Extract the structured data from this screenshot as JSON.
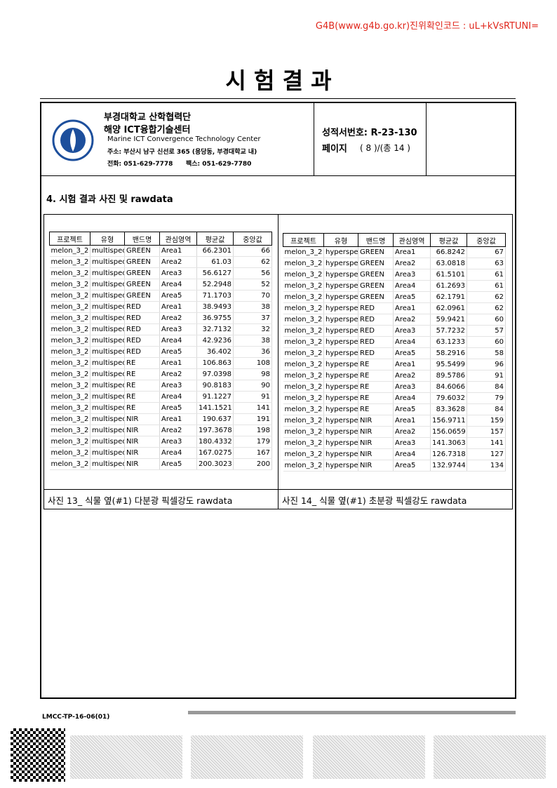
{
  "verification": "G4B(www.g4b.go.kr)진위확인코드 : uL+kVsRTUNI=",
  "title": "시 험 결 과",
  "header": {
    "org": "부경대학교 산학협력단",
    "center": "해양 ICT융합기술센터",
    "center_en": "Marine ICT Convergence Technology Center",
    "address": "주소: 부산시 남구 신선로 365 (용당동, 부경대학교 내)",
    "phone": "전화: 051-629-7778",
    "fax": "팩스:  051-629-7780",
    "report_no": "성적서번호: R-23-130",
    "page_label": "페이지",
    "page_value": "( 8 )/(총 14 )"
  },
  "section": "4. 시험 결과 사진 및 rawdata",
  "tables": [
    {
      "columns": [
        "프로젝트",
        "유형",
        "밴드명",
        "관심영역",
        "평균값",
        "중앙값"
      ],
      "rows": [
        [
          "melon_3_2",
          "multispect",
          "GREEN",
          "Area1",
          "66.2301",
          "66"
        ],
        [
          "melon_3_2",
          "multispect",
          "GREEN",
          "Area2",
          "61.03",
          "62"
        ],
        [
          "melon_3_2",
          "multispect",
          "GREEN",
          "Area3",
          "56.6127",
          "56"
        ],
        [
          "melon_3_2",
          "multispect",
          "GREEN",
          "Area4",
          "52.2948",
          "52"
        ],
        [
          "melon_3_2",
          "multispect",
          "GREEN",
          "Area5",
          "71.1703",
          "70"
        ],
        [
          "melon_3_2",
          "multispect",
          "RED",
          "Area1",
          "38.9493",
          "38"
        ],
        [
          "melon_3_2",
          "multispect",
          "RED",
          "Area2",
          "36.9755",
          "37"
        ],
        [
          "melon_3_2",
          "multispect",
          "RED",
          "Area3",
          "32.7132",
          "32"
        ],
        [
          "melon_3_2",
          "multispect",
          "RED",
          "Area4",
          "42.9236",
          "38"
        ],
        [
          "melon_3_2",
          "multispect",
          "RED",
          "Area5",
          "36.402",
          "36"
        ],
        [
          "melon_3_2",
          "multispect",
          "RE",
          "Area1",
          "106.863",
          "108"
        ],
        [
          "melon_3_2",
          "multispect",
          "RE",
          "Area2",
          "97.0398",
          "98"
        ],
        [
          "melon_3_2",
          "multispect",
          "RE",
          "Area3",
          "90.8183",
          "90"
        ],
        [
          "melon_3_2",
          "multispect",
          "RE",
          "Area4",
          "91.1227",
          "91"
        ],
        [
          "melon_3_2",
          "multispect",
          "RE",
          "Area5",
          "141.1521",
          "141"
        ],
        [
          "melon_3_2",
          "multispect",
          "NIR",
          "Area1",
          "190.637",
          "191"
        ],
        [
          "melon_3_2",
          "multispect",
          "NIR",
          "Area2",
          "197.3678",
          "198"
        ],
        [
          "melon_3_2",
          "multispect",
          "NIR",
          "Area3",
          "180.4332",
          "179"
        ],
        [
          "melon_3_2",
          "multispect",
          "NIR",
          "Area4",
          "167.0275",
          "167"
        ],
        [
          "melon_3_2",
          "multispect",
          "NIR",
          "Area5",
          "200.3023",
          "200"
        ]
      ],
      "caption": "사진 13_ 식물 옆(#1) 다분광 픽셀강도 rawdata"
    },
    {
      "columns": [
        "프로젝트",
        "유형",
        "밴드명",
        "관심영역",
        "평균값",
        "중앙값"
      ],
      "rows": [
        [
          "melon_3_2",
          "hyperspec",
          "GREEN",
          "Area1",
          "66.8242",
          "67"
        ],
        [
          "melon_3_2",
          "hyperspec",
          "GREEN",
          "Area2",
          "63.0818",
          "63"
        ],
        [
          "melon_3_2",
          "hyperspec",
          "GREEN",
          "Area3",
          "61.5101",
          "61"
        ],
        [
          "melon_3_2",
          "hyperspec",
          "GREEN",
          "Area4",
          "61.2693",
          "61"
        ],
        [
          "melon_3_2",
          "hyperspec",
          "GREEN",
          "Area5",
          "62.1791",
          "62"
        ],
        [
          "melon_3_2",
          "hyperspec",
          "RED",
          "Area1",
          "62.0961",
          "62"
        ],
        [
          "melon_3_2",
          "hyperspec",
          "RED",
          "Area2",
          "59.9421",
          "60"
        ],
        [
          "melon_3_2",
          "hyperspec",
          "RED",
          "Area3",
          "57.7232",
          "57"
        ],
        [
          "melon_3_2",
          "hyperspec",
          "RED",
          "Area4",
          "63.1233",
          "60"
        ],
        [
          "melon_3_2",
          "hyperspec",
          "RED",
          "Area5",
          "58.2916",
          "58"
        ],
        [
          "melon_3_2",
          "hyperspec",
          "RE",
          "Area1",
          "95.5499",
          "96"
        ],
        [
          "melon_3_2",
          "hyperspec",
          "RE",
          "Area2",
          "89.5786",
          "91"
        ],
        [
          "melon_3_2",
          "hyperspec",
          "RE",
          "Area3",
          "84.6066",
          "84"
        ],
        [
          "melon_3_2",
          "hyperspec",
          "RE",
          "Area4",
          "79.6032",
          "79"
        ],
        [
          "melon_3_2",
          "hyperspec",
          "RE",
          "Area5",
          "83.3628",
          "84"
        ],
        [
          "melon_3_2",
          "hyperspec",
          "NIR",
          "Area1",
          "156.9711",
          "159"
        ],
        [
          "melon_3_2",
          "hyperspec",
          "NIR",
          "Area2",
          "156.0659",
          "157"
        ],
        [
          "melon_3_2",
          "hyperspec",
          "NIR",
          "Area3",
          "141.3063",
          "141"
        ],
        [
          "melon_3_2",
          "hyperspec",
          "NIR",
          "Area4",
          "126.7318",
          "127"
        ],
        [
          "melon_3_2",
          "hyperspec",
          "NIR",
          "Area5",
          "132.9744",
          "134"
        ]
      ],
      "caption": "사진 14_ 식물 옆(#1) 초분광 픽셀강도 rawdata"
    }
  ],
  "footer": {
    "form_code": "LMCC-TP-16-06(01)"
  }
}
